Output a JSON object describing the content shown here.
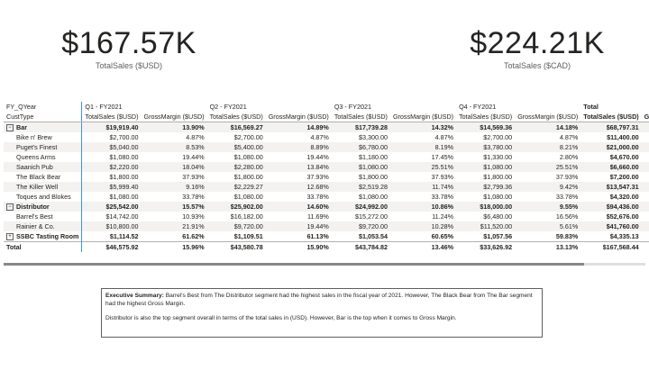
{
  "kpis": [
    {
      "value": "$167.57K",
      "label": "TotalSales ($USD)"
    },
    {
      "value": "$224.21K",
      "label": "TotalSales ($CAD)"
    }
  ],
  "matrix": {
    "row_header_1": "FY_QYear",
    "row_header_2": "CustType",
    "quarters": [
      "Q1 - FY2021",
      "Q2 - FY2021",
      "Q3 - FY2021",
      "Q4 - FY2021"
    ],
    "total_label": "Total",
    "measures": [
      "TotalSales ($USD)",
      "GrossMargin ($USD)"
    ],
    "cut_off_header": "Gro",
    "rows": [
      {
        "type": "group",
        "label": "Bar",
        "expander": "⊟",
        "values": [
          "$19,919.40",
          "13.90%",
          "$16,569.27",
          "14.89%",
          "$17,739.28",
          "14.32%",
          "$14,569.36",
          "14.18%",
          "$68,797.31"
        ]
      },
      {
        "type": "child",
        "label": "Bike n' Brew",
        "values": [
          "$2,700.00",
          "4.87%",
          "$2,700.00",
          "4.87%",
          "$3,300.00",
          "4.87%",
          "$2,700.00",
          "4.87%",
          "$11,400.00"
        ]
      },
      {
        "type": "child",
        "label": "Puget's Finest",
        "values": [
          "$5,040.00",
          "8.53%",
          "$5,400.00",
          "8.89%",
          "$6,780.00",
          "8.19%",
          "$3,780.00",
          "8.21%",
          "$21,000.00"
        ]
      },
      {
        "type": "child",
        "label": "Queens Arms",
        "values": [
          "$1,080.00",
          "19.44%",
          "$1,080.00",
          "19.44%",
          "$1,180.00",
          "17.45%",
          "$1,330.00",
          "2.80%",
          "$4,670.00"
        ]
      },
      {
        "type": "child",
        "label": "Saanich Pub",
        "values": [
          "$2,220.00",
          "18.04%",
          "$2,280.00",
          "13.84%",
          "$1,080.00",
          "25.51%",
          "$1,080.00",
          "25.51%",
          "$6,660.00"
        ]
      },
      {
        "type": "child",
        "label": "The Black Bear",
        "values": [
          "$1,800.00",
          "37.93%",
          "$1,800.00",
          "37.93%",
          "$1,800.00",
          "37.93%",
          "$1,800.00",
          "37.93%",
          "$7,200.00"
        ]
      },
      {
        "type": "child",
        "label": "The Killer Well",
        "values": [
          "$5,999.40",
          "9.16%",
          "$2,229.27",
          "12.68%",
          "$2,519.28",
          "11.74%",
          "$2,799.36",
          "9.42%",
          "$13,547.31"
        ]
      },
      {
        "type": "child",
        "label": "Toques and Blokes",
        "values": [
          "$1,080.00",
          "33.78%",
          "$1,080.00",
          "33.78%",
          "$1,080.00",
          "33.78%",
          "$1,080.00",
          "33.78%",
          "$4,320.00"
        ]
      },
      {
        "type": "group",
        "label": "Distributor",
        "expander": "⊟",
        "values": [
          "$25,542.00",
          "15.57%",
          "$25,902.00",
          "14.60%",
          "$24,992.00",
          "10.86%",
          "$18,000.00",
          "9.55%",
          "$94,436.00"
        ]
      },
      {
        "type": "child",
        "label": "Barrel's Best",
        "values": [
          "$14,742.00",
          "10.93%",
          "$16,182.00",
          "11.69%",
          "$15,272.00",
          "11.24%",
          "$6,480.00",
          "16.56%",
          "$52,676.00"
        ]
      },
      {
        "type": "child",
        "label": "Rainier & Co.",
        "values": [
          "$10,800.00",
          "21.91%",
          "$9,720.00",
          "19.44%",
          "$9,720.00",
          "10.28%",
          "$11,520.00",
          "5.61%",
          "$41,760.00"
        ]
      },
      {
        "type": "group",
        "label": "SSBC Tasting Room",
        "expander": "⊞",
        "values": [
          "$1,114.52",
          "61.62%",
          "$1,109.51",
          "61.13%",
          "$1,053.54",
          "60.65%",
          "$1,057.56",
          "59.83%",
          "$4,335.13"
        ]
      },
      {
        "type": "total",
        "label": "Total",
        "values": [
          "$46,575.92",
          "15.96%",
          "$43,580.78",
          "15.90%",
          "$43,784.82",
          "13.46%",
          "$33,626.92",
          "13.13%",
          "$167,568.44"
        ]
      }
    ]
  },
  "summary": {
    "heading": "Executive Summary:",
    "text1": " Barrel's Best from The Distributor segment had the highest sales in the fiscal year of 2021. However, The Black Bear from The Bar segment had the highest Gross Margin.",
    "text2": "Distributor is also the top segment overall in terms of the total sales in (USD). However, Bar is the top when it comes to Gross Margin."
  }
}
